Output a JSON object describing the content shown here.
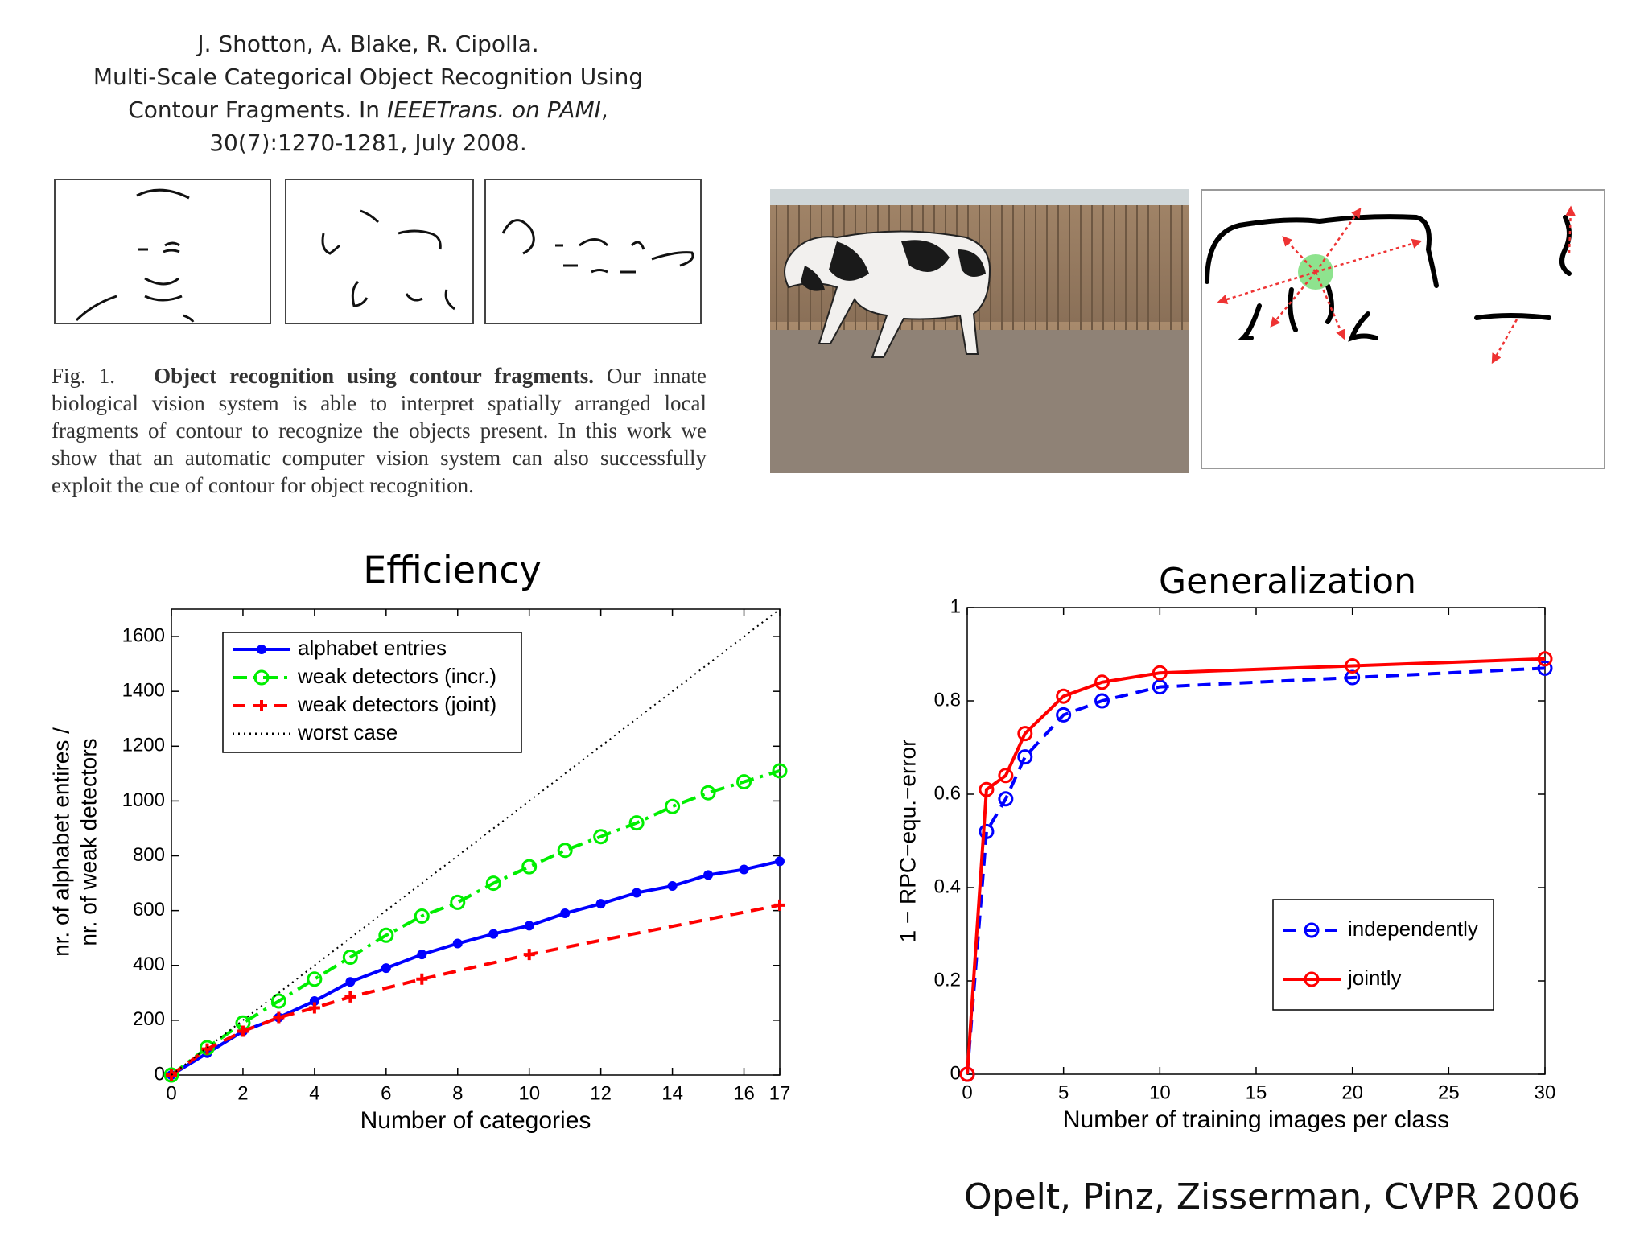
{
  "citation": {
    "lines": [
      "J. Shotton, A. Blake, R. Cipolla.",
      "Multi-Scale Categorical Object Recognition Using"
    ],
    "line3_start": "Contour Fragments. In ",
    "journal": "IEEETrans. on PAMI",
    "line3_end": ",",
    "line4": "30(7):1270-1281, July 2008."
  },
  "figure_caption": {
    "label": "Fig. 1.",
    "bold": "Object recognition using contour fragments.",
    "text": "Our innate biological vision system is able to interpret spatially arranged local fragments of contour to recognize the objects present. In this work we show that an automatic computer vision system can also successfully exploit the cue of contour for object recognition."
  },
  "footer": "Opelt, Pinz, Zisserman, CVPR 2006",
  "chart_data": [
    {
      "type": "line",
      "title": "Efficiency",
      "xlabel": "Number of categories",
      "ylabel": [
        "nr. of alphabet entires /",
        "nr. of weak detectors"
      ],
      "x": [
        0,
        1,
        2,
        3,
        4,
        5,
        6,
        7,
        8,
        9,
        10,
        11,
        12,
        13,
        14,
        15,
        16,
        17
      ],
      "xlim": [
        0,
        17
      ],
      "ylim": [
        0,
        1700
      ],
      "xticks": [
        0,
        2,
        4,
        6,
        8,
        10,
        12,
        14,
        16,
        17
      ],
      "yticks": [
        0,
        200,
        400,
        600,
        800,
        1000,
        1200,
        1400,
        1600
      ],
      "legend": "upper left",
      "series": [
        {
          "name": "alphabet entries",
          "color": "#0000ff",
          "line_style": "solid",
          "marker": "filled-circle",
          "values": [
            0,
            80,
            160,
            210,
            270,
            340,
            390,
            440,
            480,
            515,
            545,
            590,
            625,
            665,
            690,
            730,
            750,
            780
          ]
        },
        {
          "name": "weak detectors (incr.)",
          "color": "#00ee00",
          "line_style": "dash-dot",
          "marker": "circle",
          "values": [
            0,
            100,
            190,
            270,
            350,
            430,
            510,
            580,
            630,
            700,
            760,
            820,
            870,
            920,
            980,
            1030,
            1070,
            1110
          ]
        },
        {
          "name": "weak detectors (joint)",
          "color": "#ff0000",
          "line_style": "dashed",
          "marker": "plus",
          "x": [
            0,
            1,
            2,
            3,
            4,
            5,
            7,
            10,
            17
          ],
          "values": [
            0,
            95,
            160,
            210,
            245,
            285,
            350,
            440,
            620
          ]
        },
        {
          "name": "worst case",
          "color": "#000000",
          "line_style": "dotted",
          "marker": "none",
          "x": [
            0,
            17
          ],
          "values": [
            0,
            1700
          ]
        }
      ]
    },
    {
      "type": "line",
      "title": "Generalization",
      "xlabel": "Number of training images per class",
      "ylabel": [
        "1 − RPC−equ.−error"
      ],
      "x": [
        0,
        1,
        2,
        3,
        5,
        7,
        10,
        20,
        30
      ],
      "xlim": [
        0,
        30
      ],
      "ylim": [
        0,
        1
      ],
      "xticks": [
        0,
        5,
        10,
        15,
        20,
        25,
        30
      ],
      "yticks": [
        0,
        0.2,
        0.4,
        0.6,
        0.8,
        1
      ],
      "legend": "lower right",
      "series": [
        {
          "name": "independently",
          "color": "#0000ff",
          "line_style": "dashed",
          "marker": "circle",
          "values": [
            0,
            0.52,
            0.59,
            0.68,
            0.77,
            0.8,
            0.83,
            0.85,
            0.87
          ]
        },
        {
          "name": "jointly",
          "color": "#ff0000",
          "line_style": "solid",
          "marker": "circle",
          "values": [
            0,
            0.61,
            0.64,
            0.73,
            0.81,
            0.84,
            0.86,
            0.875,
            0.89
          ]
        }
      ]
    }
  ]
}
